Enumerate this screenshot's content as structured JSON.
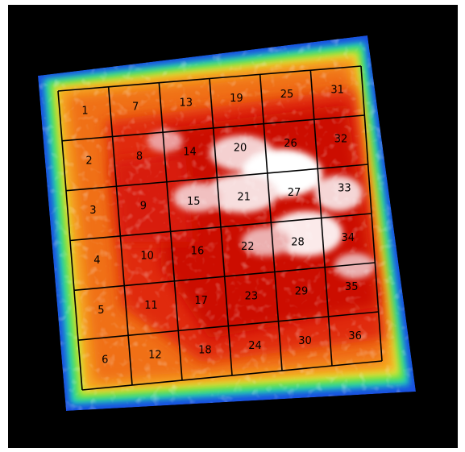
{
  "image": {
    "description_colors": {
      "background": "#000000",
      "grid_lines": "#000000",
      "labels": "#000000"
    },
    "grid": {
      "columns": 6,
      "rows": 6,
      "cells": [
        {
          "id": "1",
          "label": "1"
        },
        {
          "id": "2",
          "label": "2"
        },
        {
          "id": "3",
          "label": "3"
        },
        {
          "id": "4",
          "label": "4"
        },
        {
          "id": "5",
          "label": "5"
        },
        {
          "id": "6",
          "label": "6"
        },
        {
          "id": "7",
          "label": "7"
        },
        {
          "id": "8",
          "label": "8"
        },
        {
          "id": "9",
          "label": "9"
        },
        {
          "id": "10",
          "label": "10"
        },
        {
          "id": "11",
          "label": "11"
        },
        {
          "id": "12",
          "label": "12"
        },
        {
          "id": "13",
          "label": "13"
        },
        {
          "id": "14",
          "label": "14"
        },
        {
          "id": "15",
          "label": "15"
        },
        {
          "id": "16",
          "label": "16"
        },
        {
          "id": "17",
          "label": "17"
        },
        {
          "id": "18",
          "label": "18"
        },
        {
          "id": "19",
          "label": "19"
        },
        {
          "id": "20",
          "label": "20"
        },
        {
          "id": "21",
          "label": "21"
        },
        {
          "id": "22",
          "label": "22"
        },
        {
          "id": "23",
          "label": "23"
        },
        {
          "id": "24",
          "label": "24"
        },
        {
          "id": "25",
          "label": "25"
        },
        {
          "id": "26",
          "label": "26"
        },
        {
          "id": "27",
          "label": "27"
        },
        {
          "id": "28",
          "label": "28"
        },
        {
          "id": "29",
          "label": "29"
        },
        {
          "id": "30",
          "label": "30"
        },
        {
          "id": "31",
          "label": "31"
        },
        {
          "id": "32",
          "label": "32"
        },
        {
          "id": "33",
          "label": "33"
        },
        {
          "id": "34",
          "label": "34"
        },
        {
          "id": "35",
          "label": "35"
        },
        {
          "id": "36",
          "label": "36"
        }
      ]
    }
  }
}
